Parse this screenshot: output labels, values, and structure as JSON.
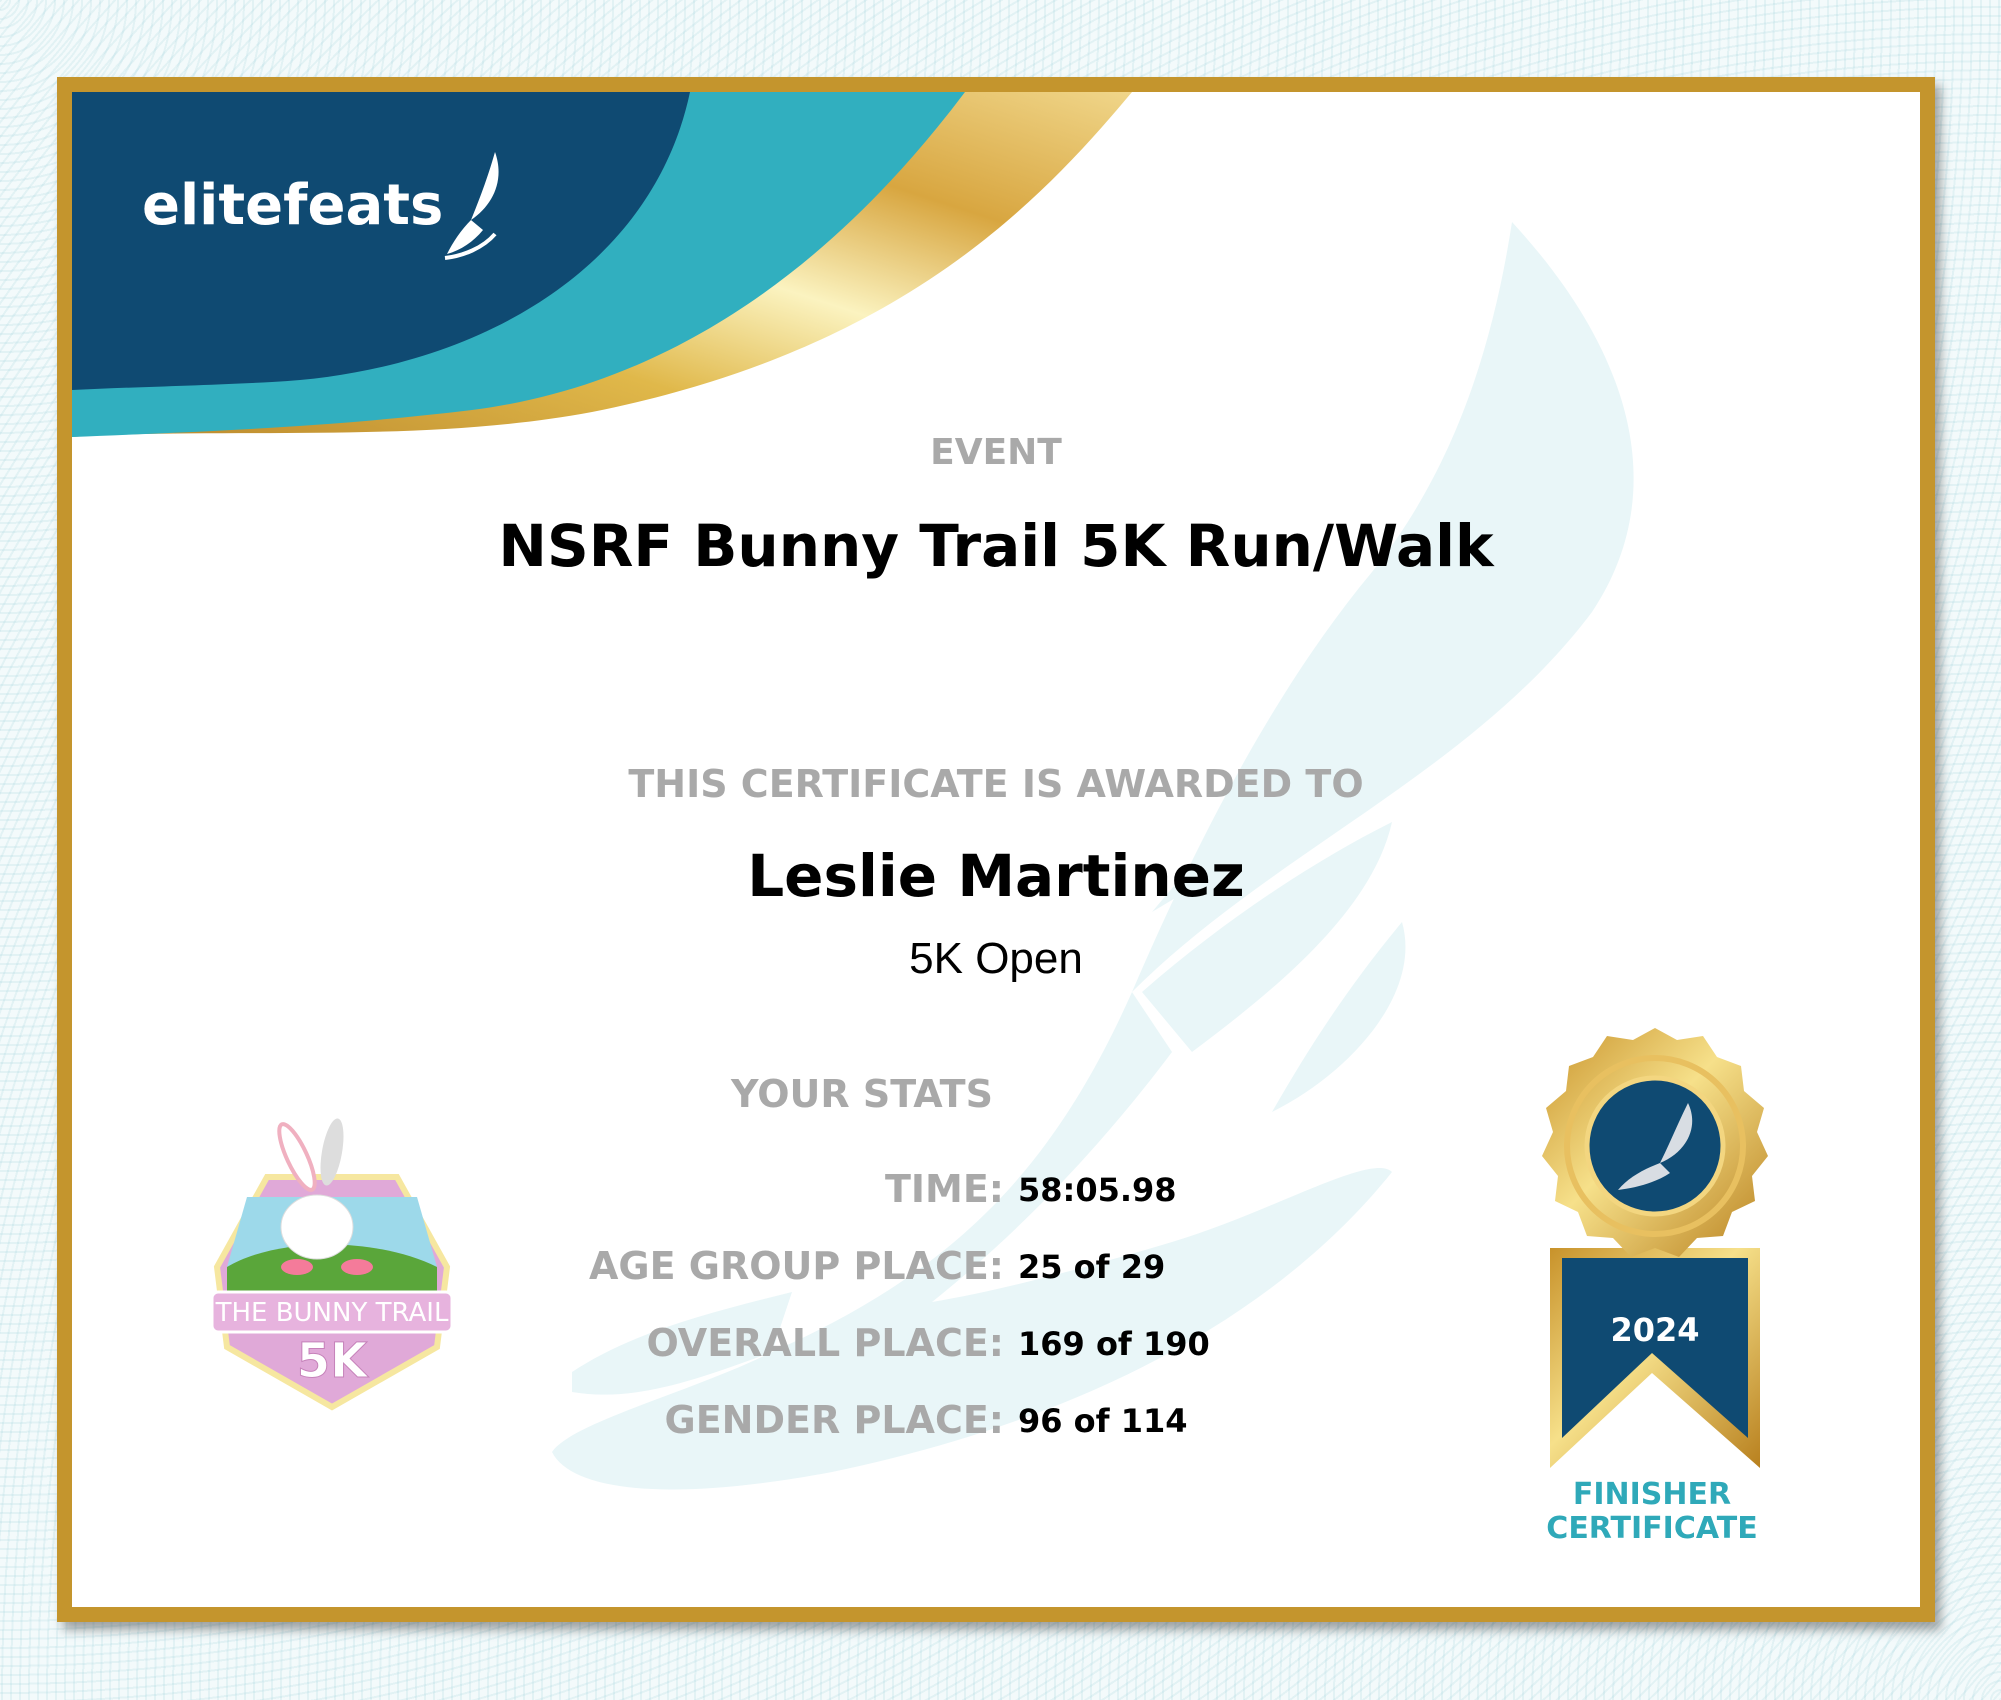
{
  "brand": {
    "logo_text": "elitefeats",
    "logo_icon": "winged-foot-icon",
    "colors": {
      "navy": "#0f4a72",
      "teal": "#31afbf",
      "gold": "#c4952d"
    }
  },
  "event": {
    "label": "EVENT",
    "title": "NSRF Bunny Trail 5K Run/Walk"
  },
  "award": {
    "label": "THIS CERTIFICATE IS AWARDED TO",
    "name": "Leslie Martinez",
    "division": "5K Open"
  },
  "stats": {
    "title": "YOUR STATS",
    "rows": [
      {
        "label": "TIME:",
        "value": "58:05.98"
      },
      {
        "label": "AGE GROUP PLACE:",
        "value": "25 of 29"
      },
      {
        "label": "OVERALL PLACE:",
        "value": "169 of 190"
      },
      {
        "label": "GENDER PLACE:",
        "value": "96 of 114"
      }
    ]
  },
  "event_badge": {
    "line1": "THE BUNNY TRAIL",
    "line2": "5K"
  },
  "ribbon": {
    "year": "2024",
    "caption_line1": "FINISHER",
    "caption_line2": "CERTIFICATE"
  }
}
